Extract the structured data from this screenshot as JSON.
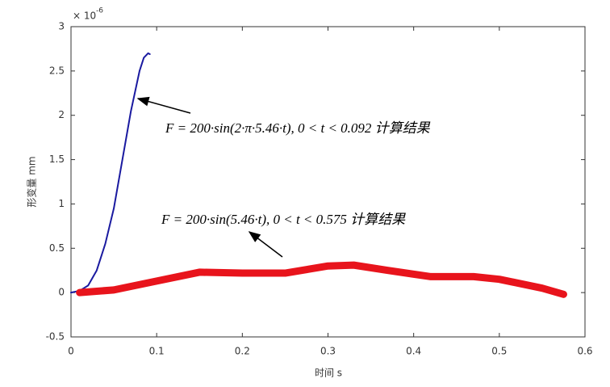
{
  "chart_data": {
    "type": "line",
    "y_label": "形变量 mm",
    "x_label": "时间 s",
    "y_multiplier_base": "× 10",
    "y_multiplier_exponent": "-6",
    "xlim": [
      0,
      0.6
    ],
    "xticks": [
      0,
      0.1,
      0.2,
      0.3,
      0.4,
      0.5,
      0.6
    ],
    "ylim": [
      -0.5,
      3
    ],
    "yticks": [
      -0.5,
      0,
      0.5,
      1,
      1.5,
      2,
      2.5,
      3
    ],
    "grid": false,
    "series": [
      {
        "color": "#1a1aa0",
        "x": [
          0,
          0.01,
          0.02,
          0.03,
          0.04,
          0.05,
          0.06,
          0.07,
          0.08,
          0.085,
          0.09,
          0.092
        ],
        "values": [
          0,
          0.02,
          0.08,
          0.25,
          0.55,
          0.95,
          1.5,
          2.05,
          2.5,
          2.65,
          2.7,
          2.69
        ]
      },
      {
        "color": "#e8141c",
        "x": [
          0.01,
          0.05,
          0.1,
          0.15,
          0.2,
          0.25,
          0.3,
          0.33,
          0.37,
          0.42,
          0.47,
          0.5,
          0.55,
          0.575
        ],
        "values": [
          0,
          0.03,
          0.13,
          0.23,
          0.22,
          0.22,
          0.3,
          0.31,
          0.25,
          0.18,
          0.18,
          0.15,
          0.05,
          -0.02
        ]
      }
    ],
    "annotations": [
      "F = 200·sin(2·π·5.46·t),    0 < t < 0.092 计算结果",
      "F = 200·sin(5.46·t),    0 < t < 0.575 计算结果"
    ]
  }
}
